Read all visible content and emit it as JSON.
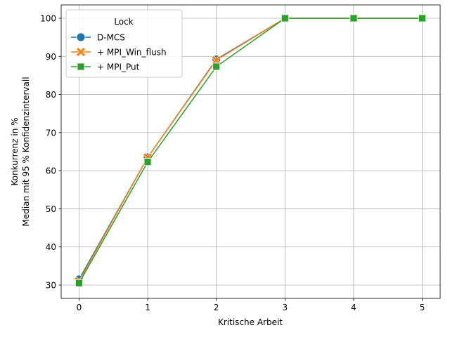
{
  "chart_data": {
    "type": "line",
    "title": "",
    "xlabel": "Kritische Arbeit",
    "ylabel": "Konkurrenz in %",
    "ylabel2": "Median mit 95 % Konfidenzintervall",
    "x": [
      0,
      1,
      2,
      3,
      4,
      5
    ],
    "xlim": [
      -0.26,
      5.26
    ],
    "ylim": [
      26.5,
      103.5
    ],
    "xticks": [
      "0",
      "1",
      "2",
      "3",
      "4",
      "5"
    ],
    "yticks": [
      "30",
      "40",
      "50",
      "60",
      "70",
      "80",
      "90",
      "100"
    ],
    "grid": true,
    "legend": {
      "title": "Lock",
      "placement": "top-left"
    },
    "series": [
      {
        "name": "D-MCS",
        "color": "#1f77b4",
        "marker": "circle",
        "values": [
          31.5,
          63.5,
          89.2,
          100,
          100,
          100
        ]
      },
      {
        "name": "+ MPI_Win_flush",
        "color": "#ff7f0e",
        "marker": "x",
        "values": [
          31.0,
          63.5,
          89.0,
          100,
          100,
          100
        ]
      },
      {
        "name": "+ MPI_Put",
        "color": "#2ca02c",
        "marker": "square",
        "values": [
          30.5,
          62.3,
          87.3,
          100,
          100,
          100
        ]
      }
    ]
  }
}
